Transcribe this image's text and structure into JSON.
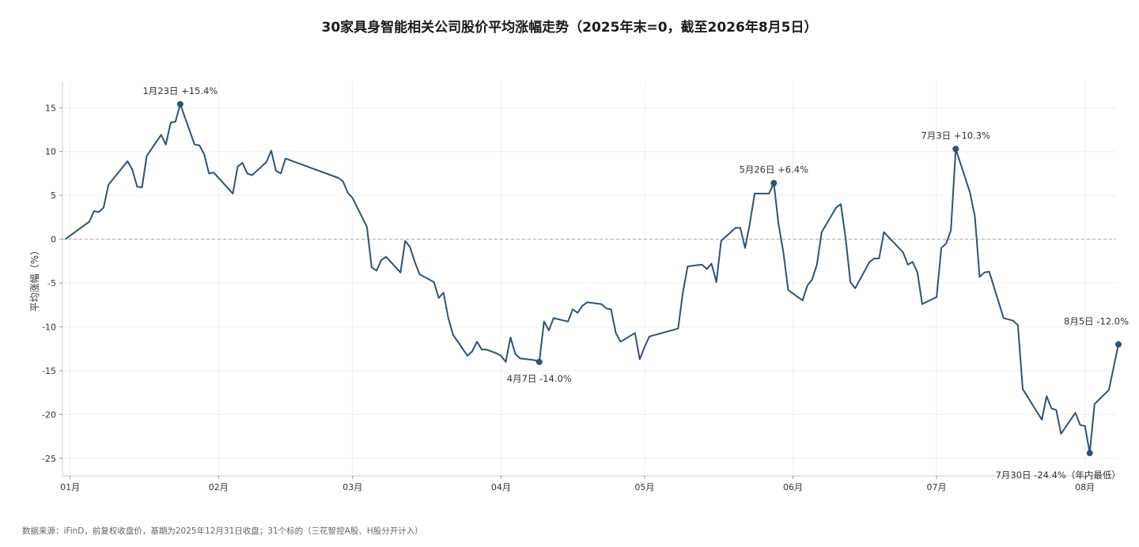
{
  "chart_data": {
    "type": "line",
    "title": "30家具身智能相关公司股价平均涨幅走势（2025年末=0，截至2026年8月5日）",
    "ylabel": "平均涨幅（%）",
    "xlabel": "",
    "ylim": [
      -27,
      18
    ],
    "yticks": [
      15,
      10,
      5,
      0,
      -5,
      -10,
      -15,
      -20,
      -25
    ],
    "xlim": [
      -1.6,
      218.5
    ],
    "xticks": [
      {
        "x": 0,
        "label": "01月"
      },
      {
        "x": 31,
        "label": "02月"
      },
      {
        "x": 59,
        "label": "03月"
      },
      {
        "x": 90,
        "label": "04月"
      },
      {
        "x": 120,
        "label": "05月"
      },
      {
        "x": 151,
        "label": "06月"
      },
      {
        "x": 181,
        "label": "07月"
      },
      {
        "x": 212,
        "label": "08月"
      }
    ],
    "grid": true,
    "zero_line": true,
    "line_color": "#2e5378",
    "series": [
      {
        "points": [
          [
            -1,
            0
          ],
          [
            4,
            2
          ],
          [
            5,
            3.2
          ],
          [
            6,
            3.1
          ],
          [
            7,
            3.6
          ],
          [
            8,
            6.2
          ],
          [
            12,
            8.9
          ],
          [
            13,
            7.9
          ],
          [
            14,
            6
          ],
          [
            15,
            5.9
          ],
          [
            16,
            9.5
          ],
          [
            19,
            11.9
          ],
          [
            20,
            10.8
          ],
          [
            21,
            13.3
          ],
          [
            22,
            13.4
          ],
          [
            23,
            15.4
          ],
          [
            26,
            10.8
          ],
          [
            27,
            10.7
          ],
          [
            28,
            9.7
          ],
          [
            29,
            7.5
          ],
          [
            30,
            7.6
          ],
          [
            34,
            5.2
          ],
          [
            35,
            8.3
          ],
          [
            36,
            8.7
          ],
          [
            37,
            7.5
          ],
          [
            38,
            7.3
          ],
          [
            41,
            8.8
          ],
          [
            42,
            10.1
          ],
          [
            43,
            7.8
          ],
          [
            44,
            7.5
          ],
          [
            45,
            9.2
          ],
          [
            56,
            7
          ],
          [
            57,
            6.6
          ],
          [
            58,
            5.3
          ],
          [
            59,
            4.7
          ],
          [
            62,
            1.4
          ],
          [
            63,
            -3.2
          ],
          [
            64,
            -3.6
          ],
          [
            65,
            -2.4
          ],
          [
            66,
            -2
          ],
          [
            69,
            -3.8
          ],
          [
            70,
            -0.2
          ],
          [
            71,
            -0.9
          ],
          [
            72,
            -2.6
          ],
          [
            73,
            -4
          ],
          [
            76,
            -4.9
          ],
          [
            77,
            -6.7
          ],
          [
            78,
            -6.1
          ],
          [
            79,
            -9
          ],
          [
            80,
            -10.9
          ],
          [
            83,
            -13.3
          ],
          [
            84,
            -12.8
          ],
          [
            85,
            -11.7
          ],
          [
            86,
            -12.6
          ],
          [
            87,
            -12.6
          ],
          [
            89,
            -13
          ],
          [
            90,
            -13.3
          ],
          [
            91,
            -14
          ],
          [
            92,
            -11.2
          ],
          [
            93,
            -13.1
          ],
          [
            94,
            -13.6
          ],
          [
            97,
            -13.8
          ],
          [
            98,
            -14
          ],
          [
            99,
            -9.4
          ],
          [
            100,
            -10.4
          ],
          [
            101,
            -9
          ],
          [
            104,
            -9.4
          ],
          [
            105,
            -8
          ],
          [
            106,
            -8.4
          ],
          [
            107,
            -7.6
          ],
          [
            108,
            -7.2
          ],
          [
            111,
            -7.4
          ],
          [
            112,
            -7.9
          ],
          [
            113,
            -8
          ],
          [
            114,
            -10.7
          ],
          [
            115,
            -11.7
          ],
          [
            118,
            -10.7
          ],
          [
            119,
            -13.7
          ],
          [
            120,
            -12.3
          ],
          [
            121,
            -11.1
          ],
          [
            127,
            -10.2
          ],
          [
            128,
            -6.1
          ],
          [
            129,
            -3.1
          ],
          [
            132,
            -2.9
          ],
          [
            133,
            -3.4
          ],
          [
            134,
            -2.8
          ],
          [
            135,
            -4.9
          ],
          [
            136,
            -0.2
          ],
          [
            139,
            1.3
          ],
          [
            140,
            1.3
          ],
          [
            141,
            -1
          ],
          [
            142,
            1.8
          ],
          [
            143,
            5.2
          ],
          [
            146,
            5.2
          ],
          [
            147,
            6.4
          ],
          [
            148,
            1.7
          ],
          [
            149,
            -1.5
          ],
          [
            150,
            -5.8
          ],
          [
            153,
            -7
          ],
          [
            154,
            -5.3
          ],
          [
            155,
            -4.6
          ],
          [
            156,
            -2.9
          ],
          [
            157,
            0.8
          ],
          [
            160,
            3.6
          ],
          [
            161,
            4
          ],
          [
            162,
            0.1
          ],
          [
            163,
            -4.9
          ],
          [
            164,
            -5.6
          ],
          [
            167,
            -2.6
          ],
          [
            168,
            -2.2
          ],
          [
            169,
            -2.2
          ],
          [
            170,
            0.8
          ],
          [
            174,
            -1.5
          ],
          [
            175,
            -2.9
          ],
          [
            176,
            -2.6
          ],
          [
            177,
            -3.8
          ],
          [
            178,
            -7.4
          ],
          [
            181,
            -6.6
          ],
          [
            182,
            -1
          ],
          [
            183,
            -0.5
          ],
          [
            184,
            1
          ],
          [
            185,
            10.3
          ],
          [
            188,
            5.3
          ],
          [
            189,
            2.6
          ],
          [
            190,
            -4.3
          ],
          [
            191,
            -3.8
          ],
          [
            192,
            -3.7
          ],
          [
            195,
            -9
          ],
          [
            197,
            -9.3
          ],
          [
            198,
            -9.8
          ],
          [
            199,
            -17.1
          ],
          [
            203,
            -20.6
          ],
          [
            204,
            -17.9
          ],
          [
            205,
            -19.3
          ],
          [
            206,
            -19.5
          ],
          [
            207,
            -22.2
          ],
          [
            210,
            -19.8
          ],
          [
            211,
            -21.2
          ],
          [
            212,
            -21.3
          ],
          [
            213,
            -24.4
          ],
          [
            214,
            -18.8
          ],
          [
            217,
            -17.2
          ],
          [
            219,
            -12
          ]
        ]
      }
    ],
    "annotations": [
      {
        "x": 23,
        "y": 15.4,
        "text": "1月23日 +15.4%",
        "pos": "above"
      },
      {
        "x": 98,
        "y": -14.0,
        "text": "4月7日 -14.0%",
        "pos": "below"
      },
      {
        "x": 147,
        "y": 6.4,
        "text": "5月26日 +6.4%",
        "pos": "above"
      },
      {
        "x": 185,
        "y": 10.3,
        "text": "7月3日 +10.3%",
        "pos": "above"
      },
      {
        "x": 219,
        "y": -12.0,
        "text": "8月5日 -12.0%",
        "pos": "above-left"
      },
      {
        "x": 213,
        "y": -24.4,
        "text": "7月30日 -24.4%（年内最低）",
        "pos": "below-left"
      }
    ]
  },
  "footer": "数据来源：iFinD，前复权收盘价，基期为2025年12月31日收盘；31个标的（三花智控A股、H股分开计入）"
}
